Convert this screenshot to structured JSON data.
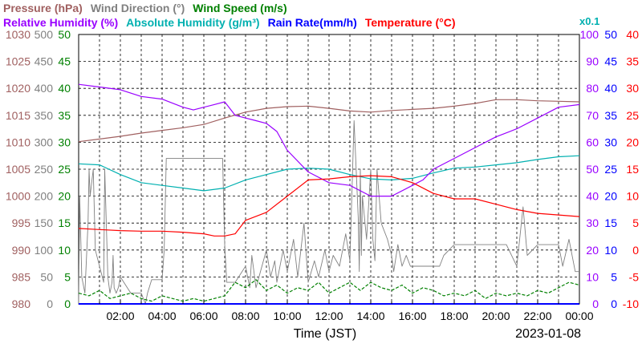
{
  "header": {
    "line1": [
      {
        "text": "Pressure (hPa)",
        "color": "#a06060"
      },
      {
        "text": "Wind Direction (°)",
        "color": "#808080"
      },
      {
        "text": "Wind Speed (m/s)",
        "color": "#008000"
      }
    ],
    "line2": [
      {
        "text": "Relative Humidity (%)",
        "color": "#9900ff"
      },
      {
        "text": "Absolute Humidity (g/m³)",
        "color": "#00b0b0"
      },
      {
        "text": "Rain Rate(mm/h)",
        "color": "#0000ff"
      },
      {
        "text": "Temperature (°C)",
        "color": "#ff0000"
      }
    ],
    "scale_note": "x0.1"
  },
  "footer": {
    "xlabel": "Time (JST)",
    "date": "2023-01-08"
  },
  "chart_data": {
    "type": "line",
    "x_unit": "hour of day",
    "x_range": [
      0,
      24
    ],
    "x_ticks": [
      "02:00",
      "04:00",
      "06:00",
      "08:00",
      "10:00",
      "12:00",
      "14:00",
      "16:00",
      "18:00",
      "20:00",
      "22:00",
      "00:00"
    ],
    "axes": {
      "pressure": {
        "min": 980,
        "max": 1030,
        "ticks": [
          980,
          985,
          990,
          995,
          1000,
          1005,
          1010,
          1015,
          1020,
          1025,
          1030
        ],
        "color": "#a06060"
      },
      "wind_direction": {
        "min": 0,
        "max": 500,
        "ticks": [
          0,
          50,
          100,
          150,
          200,
          250,
          300,
          350,
          400,
          450,
          500
        ],
        "color": "#808080"
      },
      "wind_speed": {
        "min": 0,
        "max": 50,
        "ticks": [
          0,
          5,
          10,
          15,
          20,
          25,
          30,
          35,
          40,
          45,
          50
        ],
        "color": "#008000"
      },
      "relative_humidity": {
        "min": 0,
        "max": 100,
        "ticks": [
          0,
          10,
          20,
          30,
          40,
          50,
          60,
          70,
          80,
          90,
          100
        ],
        "color": "#9900ff"
      },
      "rain_rate": {
        "min": 0,
        "max": 50,
        "ticks": [
          0,
          5,
          10,
          15,
          20,
          25,
          30,
          35,
          40,
          45,
          50
        ],
        "color": "#0000ff"
      },
      "temperature": {
        "min": -10,
        "max": 40,
        "ticks": [
          -10,
          -5,
          0,
          5,
          10,
          15,
          20,
          25,
          30,
          35,
          40
        ],
        "color": "#ff0000"
      }
    },
    "series": [
      {
        "name": "Pressure (hPa)",
        "axis": "pressure",
        "color": "#a06060",
        "x": [
          0,
          1,
          2,
          3,
          4,
          5,
          6,
          7,
          8,
          9,
          10,
          11,
          12,
          13,
          14,
          15,
          16,
          17,
          18,
          19,
          20,
          21,
          22,
          23,
          24
        ],
        "y": [
          1010.1,
          1010.6,
          1011.1,
          1011.7,
          1012.2,
          1012.7,
          1013.3,
          1014.5,
          1015.6,
          1016.3,
          1016.6,
          1016.7,
          1016.3,
          1015.8,
          1015.6,
          1015.9,
          1016.1,
          1016.3,
          1016.7,
          1017.2,
          1017.9,
          1017.9,
          1017.7,
          1017.6,
          1017.5
        ]
      },
      {
        "name": "Relative Humidity (%)",
        "axis": "relative_humidity",
        "color": "#9900ff",
        "x": [
          0,
          1,
          2,
          3,
          4,
          5,
          5.5,
          6,
          6.5,
          7,
          7.5,
          8,
          8.5,
          9,
          9.5,
          10,
          11,
          12,
          13,
          14,
          15,
          16,
          16.5,
          17,
          18,
          19,
          20,
          21,
          22,
          23,
          24
        ],
        "y": [
          81.5,
          80.5,
          79.5,
          77,
          76,
          73,
          72,
          73,
          74,
          75,
          70,
          69,
          68,
          67,
          64,
          57,
          49,
          45,
          44,
          40,
          40,
          44,
          46,
          50,
          54,
          58,
          62,
          65,
          69,
          73,
          74
        ]
      },
      {
        "name": "Absolute Humidity (g/m³)",
        "axis": "wind_speed",
        "color": "#00b0b0",
        "x": [
          0,
          1,
          2,
          3,
          4,
          5,
          6,
          7,
          8,
          9,
          10,
          11,
          12,
          13,
          14,
          15,
          16,
          17,
          18,
          19,
          20,
          21,
          22,
          23,
          24
        ],
        "y": [
          26,
          25.8,
          24,
          22.5,
          22,
          21.5,
          21,
          21.5,
          23,
          24,
          25,
          25.2,
          25,
          24,
          23.2,
          23,
          23.3,
          24.3,
          25.2,
          25.4,
          25.8,
          26.2,
          26.8,
          27.3,
          27.5
        ]
      },
      {
        "name": "Temperature (°C)",
        "axis": "temperature",
        "color": "#ff0000",
        "x": [
          0,
          1,
          2,
          3,
          4,
          5,
          6,
          6.5,
          7,
          7.5,
          8,
          9,
          10,
          11,
          12,
          13,
          14,
          15,
          16,
          17,
          18,
          19,
          20,
          21,
          22,
          23,
          24
        ],
        "y": [
          4,
          3.8,
          3.6,
          3.5,
          3.5,
          3.3,
          3,
          2.6,
          2.6,
          3,
          5.5,
          7,
          10,
          13,
          13.2,
          13.6,
          13.8,
          13.6,
          12.5,
          10.5,
          9.5,
          9.5,
          8.5,
          7.5,
          6.8,
          6.5,
          6.2
        ]
      },
      {
        "name": "Wind Direction (°)",
        "axis": "wind_direction",
        "color": "#808080",
        "x": [
          0,
          0.05,
          0.15,
          0.3,
          0.45,
          0.5,
          0.55,
          0.7,
          0.8,
          1.2,
          1.25,
          1.4,
          1.5,
          1.6,
          1.65,
          1.7,
          1.8,
          1.9,
          2.0,
          2.5,
          3.0,
          3.2,
          3.3,
          3.5,
          4.0,
          4.1,
          4.2,
          4.5,
          5.0,
          5.5,
          6.0,
          6.5,
          6.9,
          7.0,
          7.1,
          7.5,
          8.0,
          8.2,
          8.3,
          8.5,
          9.0,
          9.2,
          9.4,
          9.5,
          9.8,
          10.0,
          10.3,
          10.5,
          10.8,
          11.0,
          11.3,
          11.5,
          11.8,
          12.0,
          12.2,
          12.5,
          12.8,
          13.0,
          13.2,
          13.4,
          13.45,
          13.5,
          13.55,
          13.6,
          13.8,
          14.0,
          14.1,
          14.2,
          14.3,
          14.5,
          14.8,
          15.0,
          15.1,
          15.3,
          15.5,
          15.7,
          15.9,
          16.0,
          16.5,
          17.0,
          17.3,
          17.5,
          18.0,
          18.5,
          19.0,
          19.5,
          20.0,
          20.5,
          21.0,
          21.3,
          21.5,
          22.0,
          22.5,
          23.0,
          23.2,
          23.5,
          23.8,
          24.0
        ],
        "y": [
          0,
          200,
          50,
          20,
          150,
          250,
          200,
          250,
          100,
          40,
          250,
          50,
          20,
          40,
          90,
          30,
          20,
          30,
          50,
          20,
          20,
          0,
          20,
          45,
          45,
          100,
          270,
          270,
          270,
          270,
          270,
          270,
          270,
          110,
          40,
          40,
          70,
          30,
          90,
          30,
          100,
          50,
          80,
          40,
          100,
          60,
          120,
          50,
          150,
          40,
          80,
          50,
          100,
          60,
          90,
          70,
          130,
          80,
          340,
          160,
          60,
          250,
          90,
          200,
          120,
          250,
          120,
          80,
          250,
          150,
          120,
          90,
          60,
          110,
          70,
          90,
          70,
          70,
          70,
          70,
          70,
          90,
          110,
          110,
          110,
          110,
          110,
          110,
          70,
          180,
          90,
          110,
          110,
          110,
          70,
          120,
          60,
          60
        ]
      },
      {
        "name": "Wind Speed (m/s)",
        "axis": "wind_speed",
        "color": "#008000",
        "x": [
          0,
          0.5,
          1,
          1.5,
          2,
          2.5,
          3,
          3.5,
          4,
          4.5,
          5,
          5.5,
          6,
          6.5,
          7,
          7.5,
          8,
          8.5,
          9,
          9.5,
          10,
          10.5,
          11,
          11.5,
          12,
          12.5,
          13,
          13.5,
          14,
          14.5,
          15,
          15.5,
          16,
          16.5,
          17,
          17.5,
          18,
          18.5,
          19,
          19.5,
          20,
          20.5,
          21,
          21.5,
          22,
          22.5,
          23,
          23.5,
          24
        ],
        "y": [
          2,
          1.5,
          2.5,
          1,
          1.5,
          2,
          1,
          0.5,
          1.5,
          1,
          0.5,
          1,
          0.5,
          1,
          1.5,
          4,
          3,
          4.5,
          2.5,
          3.5,
          2,
          3,
          2.5,
          4,
          2,
          3,
          4,
          2.5,
          4,
          3,
          2.5,
          3.5,
          2,
          3,
          2.5,
          1.5,
          2,
          1.5,
          2.5,
          1,
          2,
          1.5,
          2,
          1.5,
          2.5,
          2,
          3,
          4,
          3.5
        ]
      },
      {
        "name": "Rain Rate(mm/h)",
        "axis": "rain_rate",
        "color": "#0000ff",
        "x": [
          0,
          24
        ],
        "y": [
          0,
          0
        ]
      }
    ]
  }
}
